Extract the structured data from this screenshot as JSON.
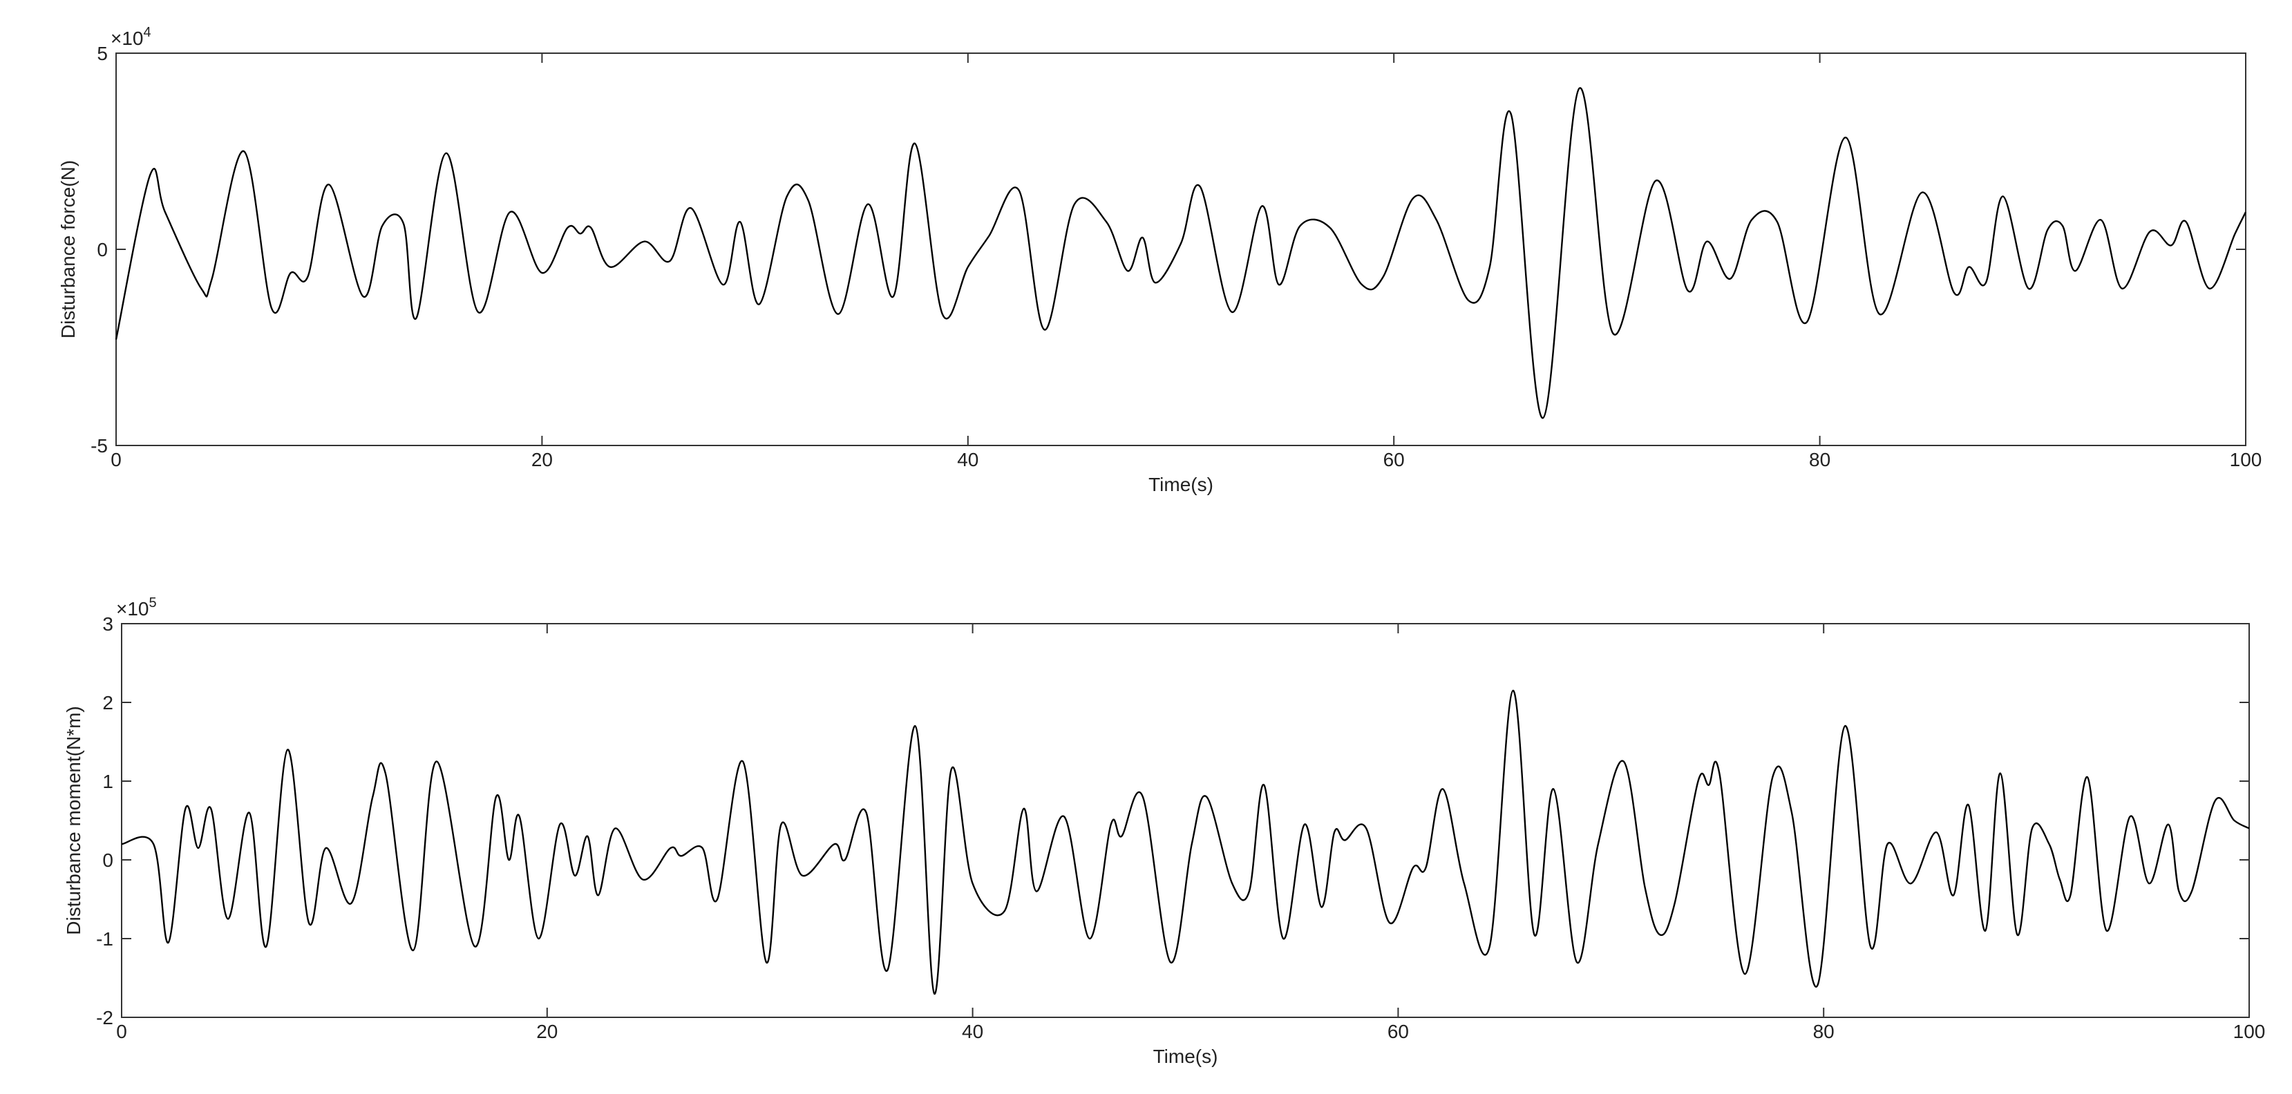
{
  "chart_data": [
    {
      "type": "line",
      "xlabel": "Time(s)",
      "ylabel": "Disturbance force(N)",
      "y_scale_base": "×10",
      "y_scale_exponent": "4",
      "xlim": [
        0,
        100
      ],
      "ylim": [
        -5,
        5
      ],
      "xticks": [
        0,
        20,
        40,
        60,
        80,
        100
      ],
      "yticks": [
        -5,
        0,
        5
      ],
      "color": "#000000",
      "x": [
        0,
        1.6,
        2.3,
        4,
        4.5,
        6,
        7.3,
        8.2,
        9,
        10,
        11.6,
        12.5,
        13.5,
        14.1,
        15.5,
        17,
        18.5,
        20,
        21.2,
        21.8,
        22.3,
        23.2,
        24.8,
        26,
        27,
        28.5,
        29.3,
        30.2,
        31.5,
        32.5,
        33.9,
        35.3,
        36.5,
        37.5,
        38.8,
        40,
        41,
        42.4,
        43.6,
        45,
        46.5,
        47.5,
        48.2,
        48.8,
        50,
        50.9,
        52.4,
        53.8,
        54.6,
        55.6,
        57,
        58.5,
        59.5,
        60.9,
        62,
        63.5,
        64.5,
        65.5,
        67,
        68.7,
        70.3,
        72.3,
        73.8,
        74.7,
        75.8,
        76.8,
        78,
        79.4,
        81.2,
        82.8,
        84.8,
        86.3,
        87,
        87.8,
        88.6,
        89.8,
        90.7,
        91.4,
        92,
        93.2,
        94.2,
        95.5,
        96.5,
        97.2,
        98.3,
        99.5,
        100
      ],
      "values": [
        -2.3,
        1.9,
        0.95,
        -1.0,
        -0.75,
        2.5,
        -1.5,
        -0.6,
        -0.7,
        1.65,
        -1.2,
        0.6,
        0.65,
        -1.75,
        2.45,
        -1.6,
        0.95,
        -0.6,
        0.55,
        0.4,
        0.55,
        -0.45,
        0.2,
        -0.3,
        1.05,
        -0.9,
        0.7,
        -1.4,
        1.35,
        1.25,
        -1.65,
        1.15,
        -1.2,
        2.7,
        -1.65,
        -0.45,
        0.35,
        1.5,
        -2.05,
        1.15,
        0.7,
        -0.55,
        0.3,
        -0.85,
        0.15,
        1.6,
        -1.6,
        1.1,
        -0.9,
        0.6,
        0.55,
        -0.9,
        -0.7,
        1.3,
        0.75,
        -1.3,
        -0.45,
        3.45,
        -4.3,
        4.1,
        -2.15,
        1.75,
        -1.05,
        0.2,
        -0.75,
        0.75,
        0.7,
        -1.85,
        2.85,
        -1.65,
        1.45,
        -1.1,
        -0.45,
        -0.85,
        1.35,
        -1.0,
        0.5,
        0.6,
        -0.55,
        0.75,
        -1.0,
        0.45,
        0.1,
        0.7,
        -1.0,
        0.4,
        0.95
      ]
    },
    {
      "type": "line",
      "xlabel": "Time(s)",
      "ylabel": "Disturbance moment(N*m)",
      "y_scale_base": "×10",
      "y_scale_exponent": "5",
      "xlim": [
        0,
        100
      ],
      "ylim": [
        -2,
        3
      ],
      "xticks": [
        0,
        20,
        40,
        60,
        80,
        100
      ],
      "yticks": [
        -2,
        -1,
        0,
        1,
        2,
        3
      ],
      "color": "#000000",
      "x": [
        0,
        1.5,
        2.2,
        3,
        3.6,
        4.2,
        5,
        6,
        6.8,
        7.8,
        8.8,
        9.6,
        10.8,
        11.8,
        12.4,
        13.7,
        14.8,
        16.6,
        17.6,
        18.2,
        18.7,
        19.6,
        20.6,
        21.3,
        21.9,
        22.4,
        23.2,
        24.5,
        25.8,
        26.3,
        27.3,
        28,
        29.2,
        30.3,
        31,
        32,
        33.5,
        34,
        35,
        36,
        37.3,
        38.2,
        39,
        40,
        41.5,
        42.4,
        43,
        44.3,
        45.5,
        46.5,
        47,
        48,
        49.3,
        50.3,
        51,
        52.2,
        53,
        53.7,
        54.6,
        55.6,
        56.4,
        57,
        57.5,
        58.5,
        59.6,
        60.7,
        61.3,
        62.1,
        63.1,
        64.3,
        65.4,
        66.4,
        67.3,
        68.4,
        69.4,
        70.6,
        71.6,
        72.3,
        73,
        74.1,
        74.6,
        75.1,
        76.3,
        77.6,
        78.5,
        79.7,
        81,
        82.2,
        83,
        84.1,
        85.3,
        86.1,
        86.8,
        87.6,
        88.3,
        89.1,
        89.8,
        90.6,
        91.1,
        91.6,
        92.4,
        93.3,
        94.4,
        95.3,
        96.2,
        96.7,
        97.3,
        98.4,
        99.3,
        100
      ],
      "values": [
        0.2,
        0.2,
        -1.05,
        0.65,
        0.15,
        0.65,
        -0.75,
        0.6,
        -1.1,
        1.4,
        -0.8,
        0.15,
        -0.55,
        0.8,
        1.1,
        -1.15,
        1.25,
        -1.1,
        0.8,
        0.0,
        0.55,
        -1.0,
        0.45,
        -0.2,
        0.3,
        -0.45,
        0.4,
        -0.25,
        0.15,
        0.05,
        0.15,
        -0.5,
        1.25,
        -1.3,
        0.45,
        -0.2,
        0.2,
        0.0,
        0.6,
        -1.4,
        1.7,
        -1.7,
        1.15,
        -0.3,
        -0.65,
        0.65,
        -0.4,
        0.55,
        -1.0,
        0.45,
        0.3,
        0.8,
        -1.3,
        0.2,
        0.8,
        -0.3,
        -0.4,
        0.95,
        -1.0,
        0.45,
        -0.6,
        0.35,
        0.25,
        0.4,
        -0.8,
        -0.1,
        -0.1,
        0.9,
        -0.3,
        -1.1,
        2.15,
        -0.95,
        0.9,
        -1.3,
        0.2,
        1.25,
        -0.35,
        -0.95,
        -0.55,
        1.0,
        0.95,
        1.1,
        -1.45,
        1.05,
        0.6,
        -1.6,
        1.7,
        -1.1,
        0.2,
        -0.3,
        0.35,
        -0.45,
        0.7,
        -0.9,
        1.1,
        -0.95,
        0.4,
        0.2,
        -0.25,
        -0.45,
        1.05,
        -0.9,
        0.55,
        -0.3,
        0.45,
        -0.4,
        -0.4,
        0.75,
        0.5,
        0.4
      ]
    }
  ]
}
